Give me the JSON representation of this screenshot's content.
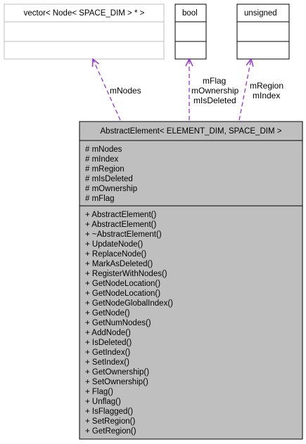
{
  "diagram": {
    "classes": {
      "vector": {
        "title": "vector< Node< SPACE_DIM > * >"
      },
      "bool": {
        "title": "bool"
      },
      "unsigned": {
        "title": "unsigned"
      },
      "abstract_element": {
        "title": "AbstractElement< ELEMENT_DIM, SPACE_DIM >",
        "attributes": [
          "# mNodes",
          "# mIndex",
          "# mRegion",
          "# mIsDeleted",
          "# mOwnership",
          "# mFlag"
        ],
        "methods": [
          "+ AbstractElement()",
          "+ AbstractElement()",
          "+ ~AbstractElement()",
          "+ UpdateNode()",
          "+ ReplaceNode()",
          "+ MarkAsDeleted()",
          "+ RegisterWithNodes()",
          "+ GetNodeLocation()",
          "+ GetNodeLocation()",
          "+ GetNodeGlobalIndex()",
          "+ GetNode()",
          "+ GetNumNodes()",
          "+ AddNode()",
          "+ IsDeleted()",
          "+ GetIndex()",
          "+ SetIndex()",
          "+ GetOwnership()",
          "+ SetOwnership()",
          "+ Flag()",
          "+ Unflag()",
          "+ IsFlagged()",
          "+ SetRegion()",
          "+ GetRegion()"
        ]
      }
    },
    "edge_labels": {
      "vector_edge": [
        "mNodes"
      ],
      "bool_edge": [
        "mFlag",
        "mOwnership",
        "mIsDeleted"
      ],
      "unsigned_edge": [
        "mRegion",
        "mIndex"
      ]
    },
    "colors": {
      "main_class_fill": "#bfbfbf",
      "template_border": "#bfbfbf",
      "arrow": "#9a32cd"
    }
  }
}
